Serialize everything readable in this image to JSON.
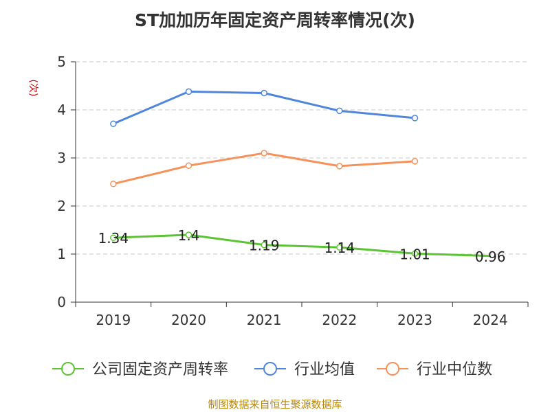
{
  "title": "ST加加历年固定资产周转率情况(次)",
  "source": "制图数据来自恒生聚源数据库",
  "chart_data": {
    "type": "line",
    "title": "ST加加历年固定资产周转率情况(次)",
    "ylabel": "(次)",
    "xlabel": "",
    "categories": [
      "2019",
      "2020",
      "2021",
      "2022",
      "2023",
      "2024"
    ],
    "yticks": [
      "0",
      "1",
      "2",
      "3",
      "4",
      "5"
    ],
    "ylim": [
      0,
      5
    ],
    "grid": true,
    "legend_position": "bottom",
    "series": [
      {
        "name": "公司固定资产周转率",
        "color": "#5cc433",
        "values": [
          1.34,
          1.4,
          1.19,
          1.14,
          1.01,
          0.96
        ],
        "labels": [
          "1.34",
          "1.4",
          "1.19",
          "1.14",
          "1.01",
          "0.96"
        ]
      },
      {
        "name": "行业均值",
        "color": "#4f86dc",
        "values": [
          3.71,
          4.38,
          4.35,
          3.98,
          3.83,
          null
        ]
      },
      {
        "name": "行业中位数",
        "color": "#f7915a",
        "values": [
          2.46,
          2.84,
          3.1,
          2.83,
          2.93,
          null
        ]
      }
    ]
  }
}
